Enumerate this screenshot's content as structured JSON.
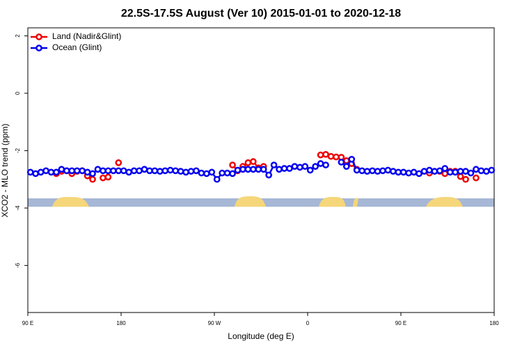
{
  "chart_data": {
    "type": "line",
    "title": "22.5S-17.5S August (Ver 10)   2015-01-01 to 2020-12-18",
    "x_label": "Longitude (deg E)",
    "y_label": "XCO2 - MLO trend (ppm)",
    "xlim": [
      90,
      540
    ],
    "ylim": [
      -7.64,
      2.28
    ],
    "xticks": [
      {
        "value": 90,
        "label": "90 E"
      },
      180,
      {
        "value": 270,
        "label": "90 W"
      },
      {
        "value": 360,
        "label": "0"
      },
      {
        "value": 450,
        "label": "90 E"
      },
      {
        "value": 540,
        "label": "180"
      }
    ],
    "yticks": [
      2,
      0,
      -2,
      -4,
      -6
    ],
    "legend": "top-left",
    "x": [
      92.5,
      97.5,
      102.5,
      107.5,
      112.5,
      117.5,
      122.5,
      127.5,
      132.5,
      137.5,
      142.5,
      147.5,
      152.5,
      157.5,
      162.5,
      167.5,
      172.5,
      177.5,
      182.5,
      187.5,
      192.5,
      197.5,
      202.5,
      207.5,
      212.5,
      217.5,
      222.5,
      227.5,
      232.5,
      237.5,
      242.5,
      247.5,
      252.5,
      257.5,
      262.5,
      267.5,
      272.5,
      277.5,
      282.5,
      287.5,
      292.5,
      297.5,
      302.5,
      307.5,
      312.5,
      317.5,
      322.5,
      327.5,
      332.5,
      337.5,
      342.5,
      347.5,
      352.5,
      357.5,
      362.5,
      367.5,
      372.5,
      377.5,
      382.5,
      387.5,
      392.5,
      397.5,
      402.5,
      407.5,
      412.5,
      417.5,
      422.5,
      427.5,
      432.5,
      437.5,
      442.5,
      447.5,
      452.5,
      457.5,
      462.5,
      467.5,
      472.5,
      477.5,
      482.5,
      487.5,
      492.5,
      497.5,
      502.5,
      507.5,
      512.5,
      517.5,
      522.5,
      527.5,
      532.5,
      537.5
    ],
    "series": [
      {
        "name": "Land (Nadir&Glint)",
        "color": "#ee0000",
        "values": [
          null,
          null,
          null,
          null,
          null,
          -2.8,
          -2.72,
          -2.7,
          -2.8,
          -2.72,
          -2.7,
          -2.88,
          -3.0,
          null,
          -2.95,
          -2.92,
          null,
          -2.42,
          null,
          null,
          null,
          null,
          null,
          null,
          null,
          null,
          null,
          null,
          null,
          null,
          null,
          null,
          null,
          null,
          null,
          null,
          null,
          null,
          null,
          -2.5,
          -2.7,
          -2.55,
          -2.42,
          -2.38,
          -2.6,
          -2.55,
          null,
          null,
          null,
          null,
          null,
          null,
          null,
          null,
          null,
          null,
          -2.15,
          -2.13,
          -2.2,
          -2.22,
          -2.23,
          -2.35,
          -2.45,
          -2.65,
          null,
          null,
          null,
          null,
          null,
          null,
          null,
          null,
          null,
          null,
          null,
          null,
          null,
          -2.78,
          null,
          -2.72,
          -2.8,
          -2.72,
          -2.72,
          -2.9,
          -3.0,
          null,
          -2.95,
          null,
          null,
          null
        ]
      },
      {
        "name": "Ocean (Glint)",
        "color": "#0000ee",
        "values": [
          -2.75,
          -2.8,
          -2.75,
          -2.7,
          -2.75,
          -2.75,
          -2.65,
          -2.7,
          -2.7,
          -2.7,
          -2.7,
          -2.75,
          -2.8,
          -2.65,
          -2.7,
          -2.7,
          -2.7,
          -2.7,
          -2.7,
          -2.75,
          -2.7,
          -2.7,
          -2.65,
          -2.7,
          -2.7,
          -2.72,
          -2.7,
          -2.68,
          -2.7,
          -2.72,
          -2.75,
          -2.72,
          -2.7,
          -2.78,
          -2.8,
          -2.75,
          -3.0,
          -2.78,
          -2.78,
          -2.8,
          -2.68,
          -2.65,
          -2.65,
          -2.65,
          -2.65,
          -2.65,
          -2.85,
          -2.5,
          -2.65,
          -2.62,
          -2.62,
          -2.55,
          -2.58,
          -2.55,
          -2.68,
          -2.55,
          -2.45,
          -2.5,
          null,
          null,
          -2.4,
          -2.55,
          -2.3,
          -2.68,
          -2.7,
          -2.72,
          -2.7,
          -2.72,
          -2.7,
          -2.68,
          -2.72,
          -2.75,
          -2.75,
          -2.78,
          -2.75,
          -2.8,
          -2.72,
          -2.68,
          -2.72,
          -2.7,
          -2.62,
          -2.75,
          -2.75,
          -2.72,
          -2.72,
          -2.78,
          -2.65,
          -2.7,
          -2.72,
          -2.68
        ]
      }
    ]
  }
}
